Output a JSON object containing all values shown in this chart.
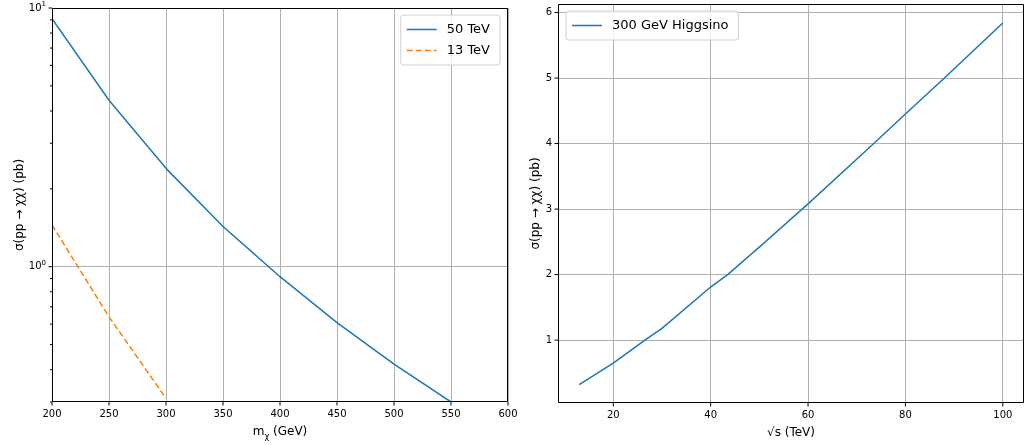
{
  "chart_data": [
    {
      "type": "line",
      "xlabel": "m$_{χ}$ (GeV)",
      "ylabel": "σ(pp → χχ) (pb)",
      "log": "y",
      "grid": true,
      "legend": "top right",
      "line_style": "solid",
      "x": [
        200,
        250,
        300,
        350,
        400,
        450,
        500,
        550
      ],
      "series": [
        {
          "name": "50 TeV",
          "color": "#1f77b4",
          "values": [
            9.1,
            4.4,
            2.4,
            1.43,
            0.915,
            0.608,
            0.42,
            0.3
          ]
        },
        {
          "name": "13 TeV",
          "color": "#ff7f0e",
          "line_style": "dashed",
          "x": [
            200,
            250,
            300
          ],
          "values": [
            1.45,
            0.64,
            0.31
          ]
        }
      ],
      "xlim": [
        200,
        600
      ],
      "xticks": [
        200,
        250,
        300,
        350,
        400,
        450,
        500,
        550,
        600
      ],
      "ylim": [
        0.3,
        10
      ],
      "yticks": [
        {
          "value": 0.3,
          "label": null
        },
        {
          "value": 0.4,
          "label": null
        },
        {
          "value": 0.5,
          "label": null
        },
        {
          "value": 0.6,
          "label": null
        },
        {
          "value": 0.7,
          "label": null
        },
        {
          "value": 0.8,
          "label": null
        },
        {
          "value": 0.9,
          "label": null
        },
        {
          "value": 1,
          "label": "10$^{0}$"
        },
        {
          "value": 2,
          "label": null
        },
        {
          "value": 3,
          "label": null
        },
        {
          "value": 4,
          "label": null
        },
        {
          "value": 5,
          "label": null
        },
        {
          "value": 6,
          "label": null
        },
        {
          "value": 7,
          "label": null
        },
        {
          "value": 8,
          "label": null
        },
        {
          "value": 9,
          "label": null
        },
        {
          "value": 10,
          "label": "10$^{1}$"
        }
      ]
    },
    {
      "type": "line",
      "xlabel": "√s (TeV)",
      "ylabel": "σ(pp → χχ) (pb)",
      "grid": true,
      "legend": "top left",
      "line_style": "solid",
      "x": [
        13,
        20,
        26.5,
        30,
        40,
        43.5,
        50,
        60,
        73.5,
        80,
        88,
        100
      ],
      "series": [
        {
          "name": "300 GeV Higgsino",
          "color": "#1f77b4",
          "values": [
            0.32,
            0.65,
            1.0,
            1.18,
            1.81,
            2.0,
            2.42,
            3.08,
            4.0,
            4.45,
            5.0,
            5.84
          ]
        }
      ],
      "xlim": [
        8.65,
        104.35
      ],
      "xticks": [
        20,
        40,
        60,
        80,
        100
      ],
      "ylim": [
        0.04,
        6.13
      ],
      "yticks": [
        1,
        2,
        3,
        4,
        5,
        6
      ]
    }
  ]
}
